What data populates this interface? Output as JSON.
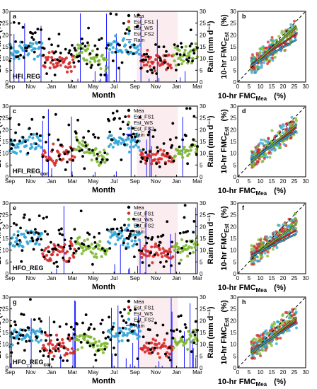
{
  "figure": {
    "ts_ylabel": "10-hr FMC (%)",
    "rain_ylabel": "Rain (mm d⁻¹)",
    "ts_xlabel": "Month",
    "sc_xlabel_main": "10-hr FMC",
    "sc_xlabel_sub": "Mea",
    "sc_xlabel_unit": "(%)",
    "sc_ylabel_main": "10-hr FMC",
    "sc_ylabel_sub": "Est",
    "sc_ylabel_unit": "(%)",
    "month_ticks": [
      "Sep",
      "Nov",
      "Jan",
      "Mar",
      "May",
      "Jul",
      "Sep",
      "Nov",
      "Jan",
      "Mar"
    ],
    "fmc_ticks": [
      "0",
      "5",
      "10",
      "15",
      "20",
      "25",
      "30"
    ],
    "rain_ticks": [
      "0",
      "5",
      "10",
      "15",
      "20",
      "25",
      "30"
    ]
  },
  "colors": {
    "mea": "#000000",
    "est_fs1": "#d62728",
    "est_ws": "#7cb82f",
    "est_fs2": "#2fa4d8",
    "rain": "#1a1aff",
    "background_shade": "#f4c9d0"
  },
  "chart_data": [
    {
      "panel": "a",
      "type": "scatter",
      "title": "HFI_REG",
      "title_sub": "",
      "xlabel": "Month",
      "ylabel": "10-hr FMC (%)",
      "y2label": "Rain (mm d⁻¹)",
      "ylim": [
        0,
        30
      ],
      "y2lim": [
        0,
        30
      ],
      "legend": [
        "Mea",
        "Est_FS1",
        "Est_WS",
        "Est_FS2",
        "Rain"
      ],
      "legend_placement": "top-right"
    },
    {
      "panel": "b",
      "type": "scatter",
      "xlim": [
        0,
        30
      ],
      "ylim": [
        0,
        30
      ],
      "xlabel": "10-hr FMC Mea (%)",
      "ylabel": "10-hr FMC Est (%)",
      "lines": [
        {
          "name": "FS1",
          "x": [
            6,
            26
          ],
          "y": [
            7.5,
            20.5
          ]
        },
        {
          "name": "WS",
          "x": [
            6,
            26
          ],
          "y": [
            6.8,
            23.5
          ]
        },
        {
          "name": "FS2",
          "x": [
            6,
            26
          ],
          "y": [
            7.0,
            18.0
          ]
        }
      ]
    },
    {
      "panel": "c",
      "type": "scatter",
      "title": "HFI_REG",
      "title_sub": "cor",
      "xlabel": "Month",
      "ylabel": "10-hr FMC (%)",
      "y2label": "Rain (mm d⁻¹)",
      "ylim": [
        0,
        30
      ],
      "y2lim": [
        0,
        30
      ],
      "legend": [
        "Mea",
        "Est_FS1",
        "Est_WS",
        "Est_FS2",
        "Rain"
      ],
      "legend_placement": "top-right"
    },
    {
      "panel": "d",
      "type": "scatter",
      "xlim": [
        0,
        30
      ],
      "ylim": [
        0,
        30
      ],
      "xlabel": "10-hr FMC Mea (%)",
      "ylabel": "10-hr FMC Est (%)",
      "lines": [
        {
          "name": "FS1",
          "x": [
            6,
            26
          ],
          "y": [
            7.0,
            21.0
          ]
        },
        {
          "name": "WS",
          "x": [
            6,
            26
          ],
          "y": [
            6.5,
            22.0
          ]
        },
        {
          "name": "FS2",
          "x": [
            6,
            26
          ],
          "y": [
            7.5,
            19.5
          ]
        }
      ]
    },
    {
      "panel": "e",
      "type": "scatter",
      "title": "HFO_REG",
      "title_sub": "",
      "xlabel": "Month",
      "ylabel": "10-hr FMC (%)",
      "y2label": "Rain (mm d⁻¹)",
      "ylim": [
        0,
        30
      ],
      "y2lim": [
        0,
        30
      ],
      "legend": [
        "Mea",
        "Est_FS1",
        "Est_WS",
        "Est_FS2",
        "Rain"
      ],
      "legend_placement": "top-right"
    },
    {
      "panel": "f",
      "type": "scatter",
      "xlim": [
        0,
        30
      ],
      "ylim": [
        0,
        30
      ],
      "xlabel": "10-hr FMC Mea (%)",
      "ylabel": "10-hr FMC Est (%)",
      "lines": [
        {
          "name": "FS1",
          "x": [
            6,
            26
          ],
          "y": [
            8.0,
            18.5
          ]
        },
        {
          "name": "WS",
          "x": [
            6,
            26
          ],
          "y": [
            7.0,
            21.0
          ]
        },
        {
          "name": "FS2",
          "x": [
            6,
            26
          ],
          "y": [
            7.5,
            17.0
          ]
        }
      ]
    },
    {
      "panel": "g",
      "type": "scatter",
      "title": "HFO_REG",
      "title_sub": "cor",
      "xlabel": "Month",
      "ylabel": "10-hr FMC (%)",
      "y2label": "Rain (mm d⁻¹)",
      "ylim": [
        0,
        30
      ],
      "y2lim": [
        0,
        30
      ],
      "legend": [
        "Mea",
        "Est_FS1",
        "Est_WS",
        "Est_FS2",
        "Rain"
      ],
      "legend_placement": "top-right"
    },
    {
      "panel": "h",
      "type": "scatter",
      "xlim": [
        0,
        30
      ],
      "ylim": [
        0,
        30
      ],
      "xlabel": "10-hr FMC Mea (%)",
      "ylabel": "10-hr FMC Est (%)",
      "lines": [
        {
          "name": "FS1",
          "x": [
            6,
            26
          ],
          "y": [
            6.5,
            20.0
          ]
        },
        {
          "name": "WS",
          "x": [
            6,
            26
          ],
          "y": [
            6.0,
            21.5
          ]
        },
        {
          "name": "FS2",
          "x": [
            6,
            26
          ],
          "y": [
            7.0,
            19.0
          ]
        }
      ]
    }
  ]
}
